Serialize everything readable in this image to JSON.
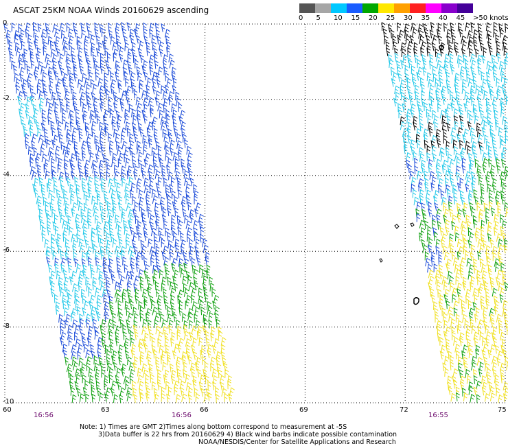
{
  "title": "ASCAT 25KM NOAA Winds 20160629 ascending",
  "legend": {
    "labels": [
      "0",
      "5",
      "10",
      "15",
      "20",
      "25",
      "30",
      "35",
      "40",
      "45",
      ">50 knots"
    ],
    "colors": [
      "#555555",
      "#a6a6a6",
      "#00c8ff",
      "#1a5cff",
      "#00a800",
      "#ffe800",
      "#ffa000",
      "#ff2020",
      "#ff00ff",
      "#8800cc",
      "#440099"
    ]
  },
  "axes": {
    "lat_labels": [
      "0",
      "-2",
      "-4",
      "-6",
      "-8",
      "-10"
    ],
    "lon_labels": [
      "60",
      "63",
      "66",
      "69",
      "72",
      "75"
    ]
  },
  "times": [
    "16:56",
    "16:56",
    "16:55"
  ],
  "notes": {
    "line1": "Note: 1) Times are GMT 2)Times along bottom correspond to measurement at -5S",
    "line2": "3)Data buffer is 22 hrs from 20160629 4) Black wind barbs indicate possible contamination",
    "line3": "NOAA/NESDIS/Center for Satellite Applications and Research"
  },
  "map": {
    "lat_range": [
      -10,
      0
    ],
    "lon_range": [
      60,
      75
    ],
    "grid": "dotted",
    "swaths": [
      "west swath (~60–66E)",
      "east swath (~72–75E)"
    ],
    "wind_colors": {
      "blue": "#1a4ad8",
      "cyan": "#22c8e8",
      "green": "#10a010",
      "yellow": "#f0e020",
      "black": "#000000"
    }
  }
}
